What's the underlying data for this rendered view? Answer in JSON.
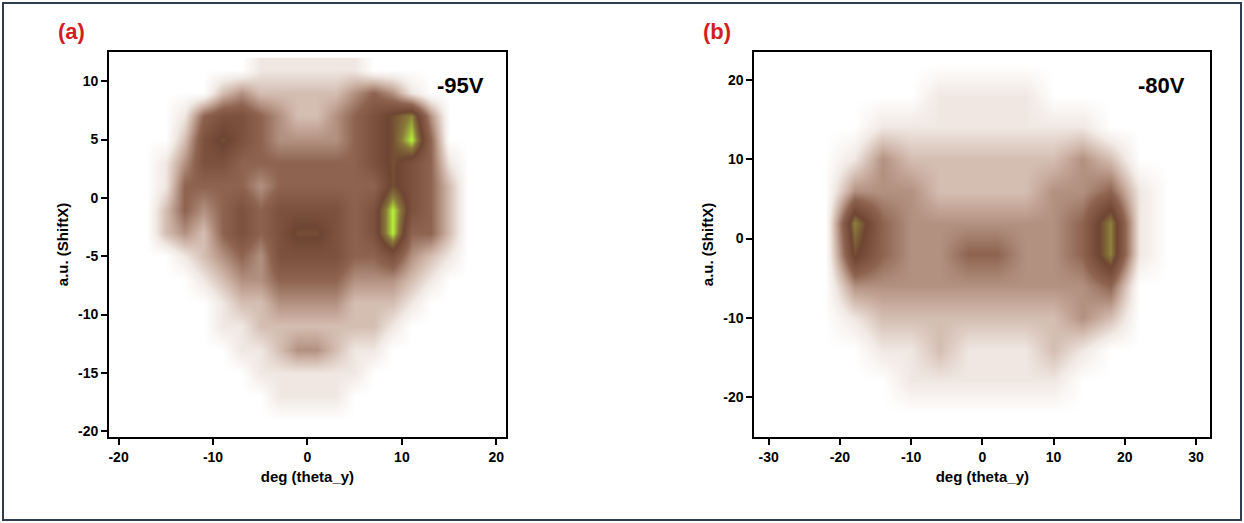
{
  "chart_data": [
    {
      "type": "heatmap",
      "label": "(a)",
      "annotation": "-95V",
      "x_label": "deg (theta_y)",
      "y_label": "a.u. (ShiftX)",
      "xlim": [
        -21,
        21
      ],
      "ylim": [
        -20.5,
        12.5
      ],
      "xticks": [
        -20,
        -10,
        0,
        10,
        20
      ],
      "yticks": [
        -20,
        -15,
        -10,
        -5,
        0,
        5,
        10
      ],
      "color_range": [
        0,
        4
      ],
      "x": [
        -19,
        -17,
        -15,
        -13,
        -11,
        -9,
        -7,
        -5,
        -3,
        -1,
        1,
        3,
        5,
        7,
        9,
        11,
        13,
        15,
        17,
        19
      ],
      "y": [
        11,
        9,
        7,
        5,
        3,
        1,
        -1,
        -3,
        -5,
        -7,
        -9,
        -11,
        -13,
        -15,
        -17,
        -19
      ],
      "cells": [
        [
          0,
          0,
          0,
          0,
          0,
          0,
          0,
          0.5,
          0.5,
          0.5,
          0.5,
          0.5,
          0.5,
          0,
          0,
          0,
          0,
          0,
          0,
          0
        ],
        [
          0,
          0,
          0,
          0,
          0,
          1,
          1.5,
          1,
          1,
          1,
          1,
          1,
          1.5,
          2,
          1.5,
          0.5,
          0,
          0,
          0,
          0
        ],
        [
          0,
          0,
          0,
          0.5,
          2,
          2.5,
          2.5,
          2,
          1.5,
          1,
          1,
          1.5,
          2,
          2.5,
          3,
          3.5,
          1.5,
          0,
          0,
          0
        ],
        [
          0,
          0,
          0,
          1,
          2.5,
          3,
          2.5,
          2,
          1.5,
          1.5,
          1.5,
          1.5,
          2,
          2.5,
          3,
          4,
          2,
          0,
          0,
          0
        ],
        [
          0,
          0,
          0.5,
          1.5,
          2.5,
          2.5,
          2,
          2,
          2,
          2,
          2,
          2,
          2,
          2.5,
          3,
          2.5,
          2,
          0.5,
          0,
          0
        ],
        [
          0,
          0,
          0.5,
          2,
          2,
          2,
          2,
          1.5,
          2,
          2,
          2,
          2,
          2,
          2,
          3,
          2.5,
          2,
          1,
          0,
          0
        ],
        [
          0,
          0,
          1,
          2,
          1.5,
          2,
          2.5,
          2,
          2.5,
          2.5,
          2.5,
          2.5,
          2,
          2.5,
          4,
          2.5,
          2,
          1,
          0,
          0
        ],
        [
          0,
          0,
          1,
          1.5,
          1,
          2,
          2.5,
          2,
          2.5,
          3,
          3,
          2.5,
          2,
          2.5,
          4,
          2,
          2,
          1,
          0,
          0
        ],
        [
          0,
          0,
          0,
          0.5,
          1,
          1.5,
          2,
          1.5,
          2.5,
          2.5,
          2.5,
          2.5,
          2,
          2,
          2.5,
          1.5,
          1,
          0.5,
          0,
          0
        ],
        [
          0,
          0,
          0,
          0,
          0.5,
          1,
          1.5,
          1.5,
          2,
          2,
          2,
          2,
          1.5,
          1.5,
          1.5,
          1,
          0.5,
          0,
          0,
          0
        ],
        [
          0,
          0,
          0,
          0,
          0,
          0.5,
          1,
          1,
          1.5,
          1.5,
          1.5,
          1.5,
          1,
          1,
          1,
          0.5,
          0,
          0,
          0,
          0
        ],
        [
          0,
          0,
          0,
          0,
          0,
          0.5,
          0.5,
          1,
          1,
          1,
          1,
          1,
          1,
          1,
          0.5,
          0,
          0,
          0,
          0,
          0
        ],
        [
          0,
          0,
          0,
          0,
          0,
          0,
          0.5,
          0.5,
          1,
          1.5,
          1.5,
          1,
          0.5,
          0.5,
          0,
          0,
          0,
          0,
          0,
          0
        ],
        [
          0,
          0,
          0,
          0,
          0,
          0,
          0,
          0.5,
          0.5,
          0.5,
          0.5,
          0.5,
          0.5,
          0,
          0,
          0,
          0,
          0,
          0,
          0
        ],
        [
          0,
          0,
          0,
          0,
          0,
          0,
          0,
          0,
          0.5,
          0.5,
          0.5,
          0.5,
          0,
          0,
          0,
          0,
          0,
          0,
          0,
          0
        ],
        [
          0,
          0,
          0,
          0,
          0,
          0,
          0,
          0,
          0,
          0,
          0,
          0,
          0,
          0,
          0,
          0,
          0,
          0,
          0,
          0
        ]
      ]
    },
    {
      "type": "heatmap",
      "label": "(b)",
      "annotation": "-80V",
      "x_label": "deg (theta_y)",
      "y_label": "a.u. (ShiftX)",
      "xlim": [
        -32,
        32
      ],
      "ylim": [
        -25,
        23.5
      ],
      "xticks": [
        -30,
        -20,
        -10,
        0,
        10,
        20,
        30
      ],
      "yticks": [
        -20,
        -10,
        0,
        10,
        20
      ],
      "color_range": [
        0,
        4
      ],
      "x": [
        -30,
        -26,
        -22,
        -18,
        -14,
        -10,
        -6,
        -2,
        2,
        6,
        10,
        14,
        18,
        22,
        26,
        30
      ],
      "y": [
        22,
        18,
        14,
        10,
        6,
        2,
        -2,
        -6,
        -10,
        -14,
        -18,
        -22
      ],
      "cells": [
        [
          0,
          0,
          0,
          0,
          0,
          0,
          0,
          0,
          0,
          0,
          0,
          0,
          0,
          0,
          0,
          0
        ],
        [
          0,
          0,
          0,
          0,
          0,
          0,
          0.5,
          0.5,
          0.5,
          0.5,
          0,
          0,
          0,
          0,
          0,
          0
        ],
        [
          0,
          0,
          0,
          0,
          0.5,
          0.5,
          0.5,
          0.5,
          0.5,
          0.5,
          0.5,
          0.5,
          0,
          0,
          0,
          0
        ],
        [
          0,
          0,
          0,
          0.5,
          1.5,
          1,
          1,
          1,
          1,
          1,
          1,
          1.5,
          1,
          0,
          0,
          0
        ],
        [
          0,
          0,
          0,
          1.5,
          1.5,
          1.5,
          1,
          1,
          1,
          1,
          1.5,
          1.5,
          2,
          0.5,
          0,
          0
        ],
        [
          0,
          0,
          0,
          3.5,
          2,
          1.5,
          1.5,
          1.5,
          1.5,
          1.5,
          1.5,
          2,
          3.5,
          0.5,
          0,
          0
        ],
        [
          0,
          0,
          0,
          3,
          2,
          1.5,
          1.5,
          2,
          2,
          1.5,
          1.5,
          2,
          3.5,
          0.5,
          0,
          0
        ],
        [
          0,
          0,
          0,
          1.5,
          1.5,
          1.5,
          1.5,
          1.5,
          1.5,
          1.5,
          1.5,
          1.5,
          2,
          0,
          0,
          0
        ],
        [
          0,
          0,
          0,
          0.5,
          1,
          1,
          1,
          1,
          1,
          1,
          1,
          1.5,
          1,
          0,
          0,
          0
        ],
        [
          0,
          0,
          0,
          0,
          0.5,
          0.5,
          1,
          0.5,
          0.5,
          0.5,
          1,
          0.5,
          0,
          0,
          0,
          0
        ],
        [
          0,
          0,
          0,
          0,
          0,
          0.5,
          0.5,
          0.5,
          0.5,
          0.5,
          0.5,
          0,
          0,
          0,
          0,
          0
        ],
        [
          0,
          0,
          0,
          0,
          0,
          0,
          0,
          0,
          0,
          0,
          0,
          0,
          0,
          0,
          0,
          0
        ]
      ]
    }
  ]
}
